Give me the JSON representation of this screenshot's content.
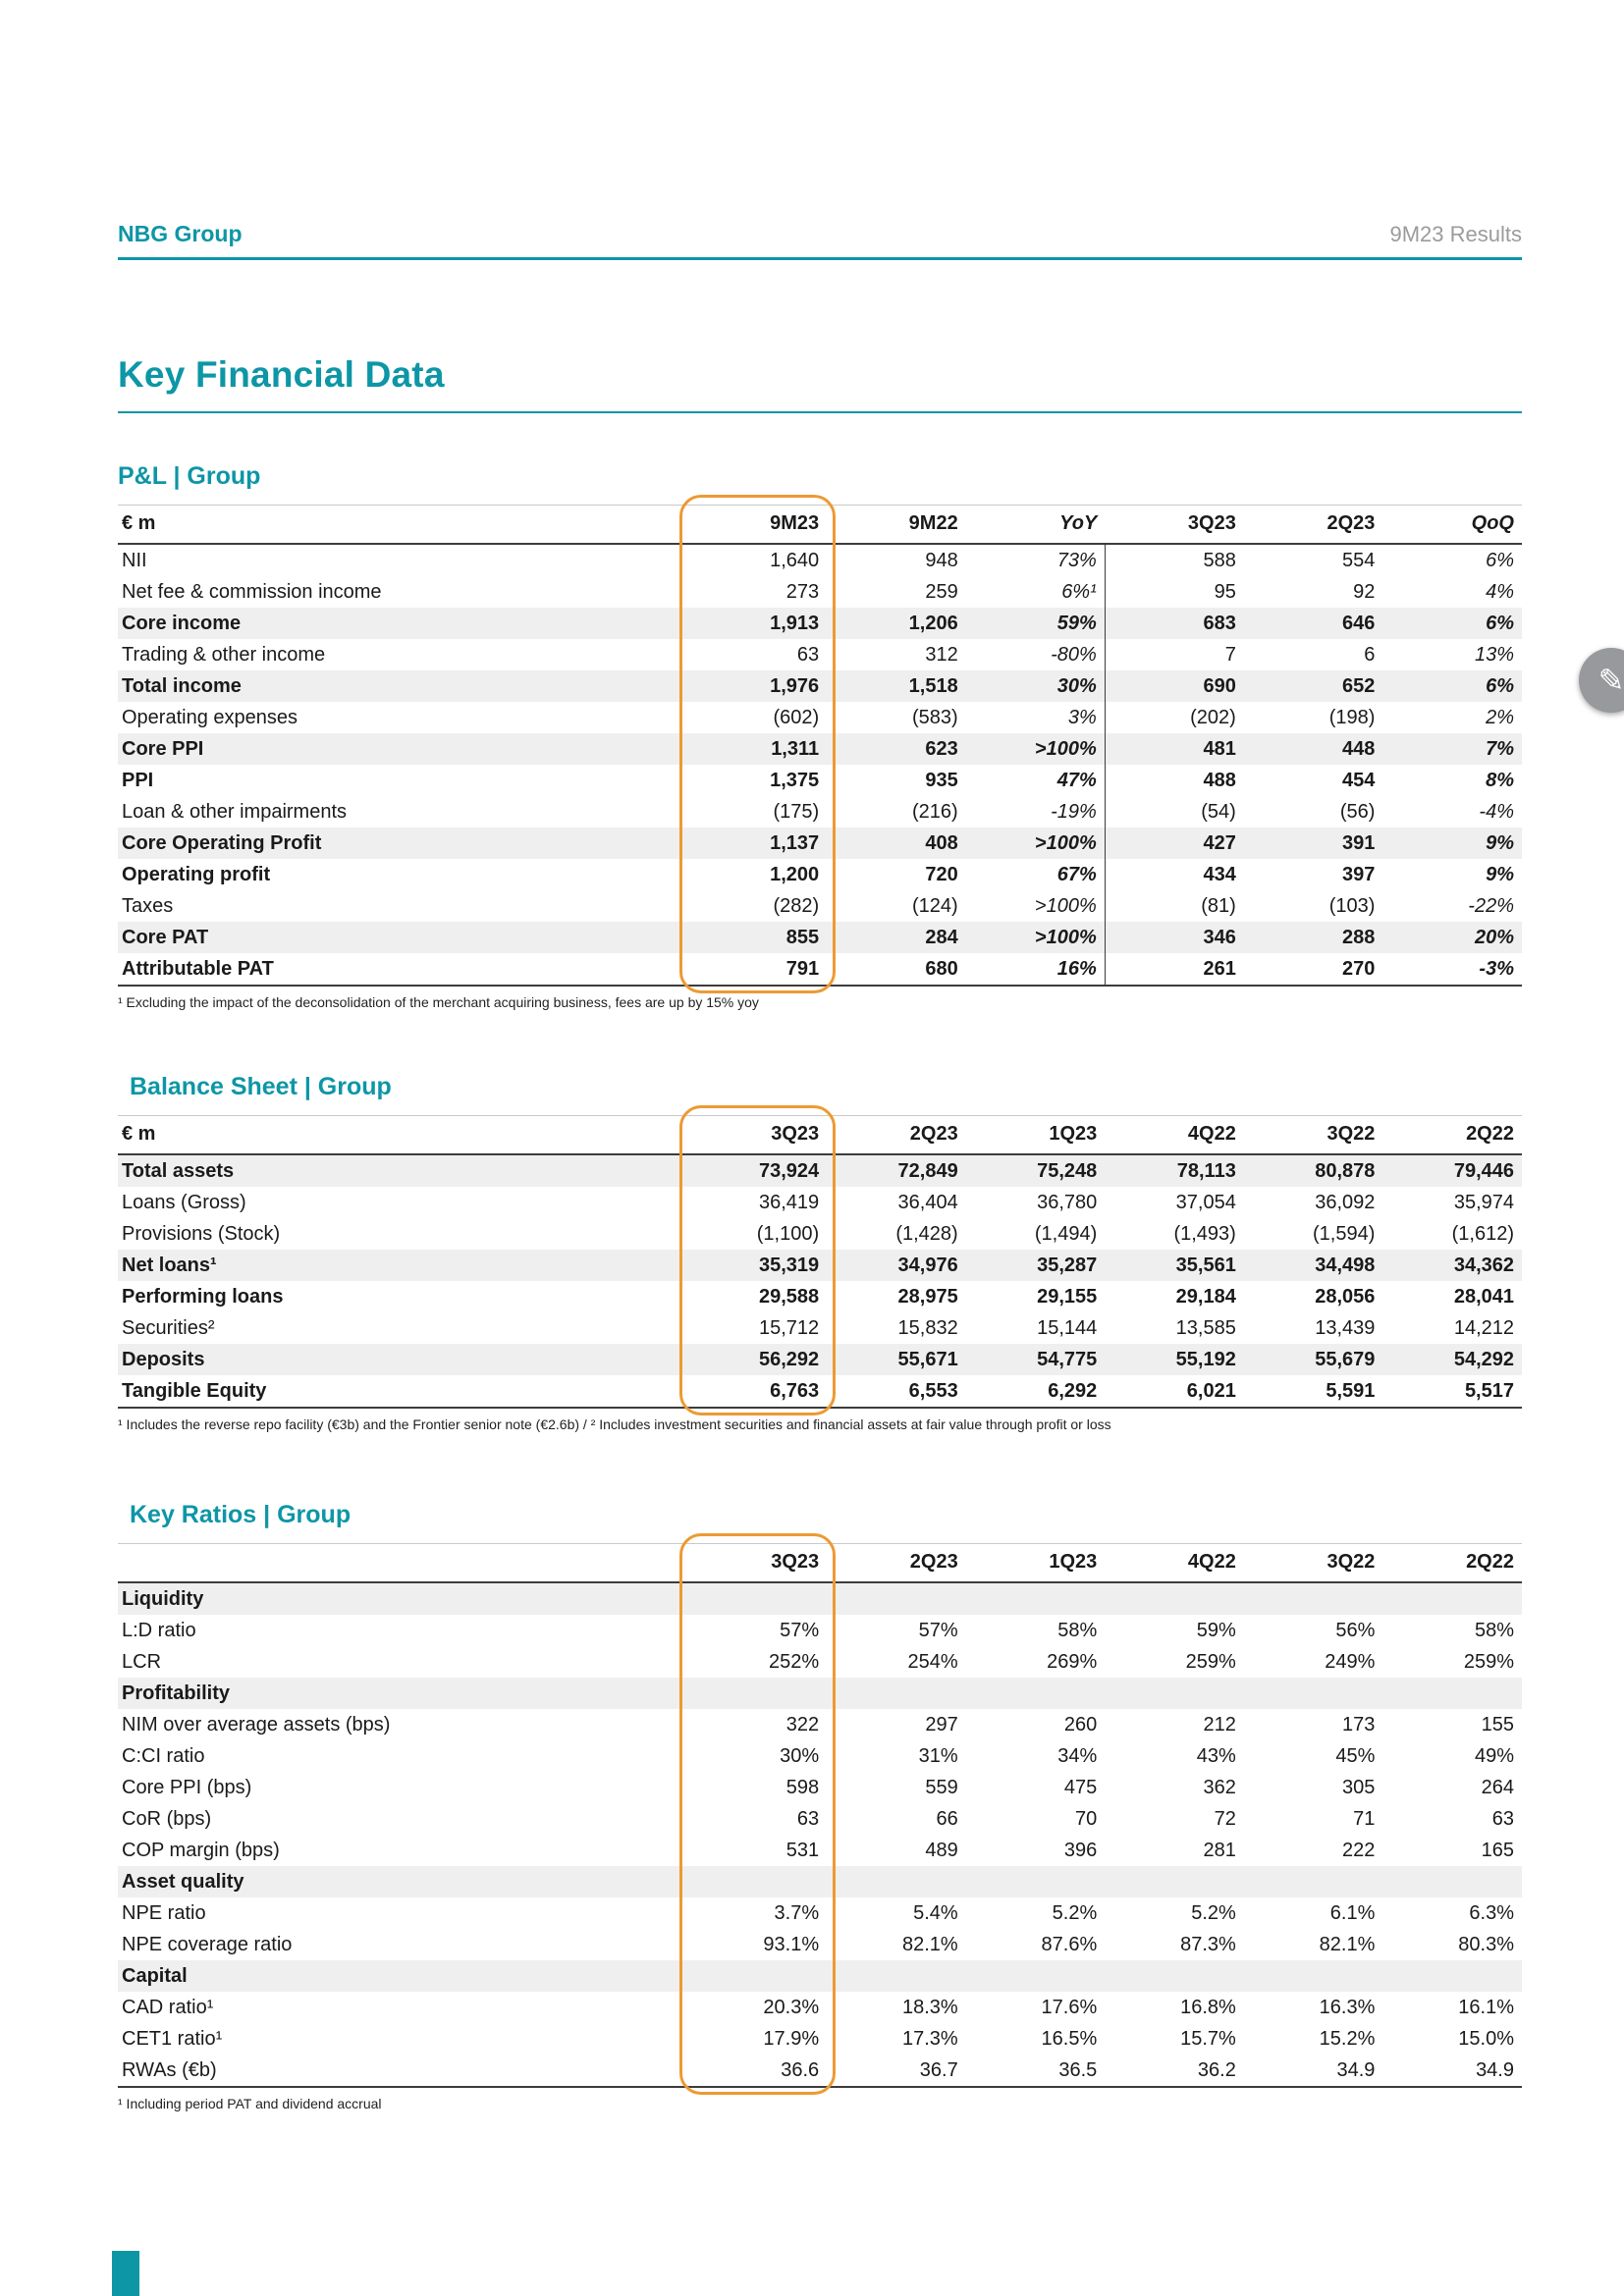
{
  "page": {
    "header_left": "NBG Group",
    "header_right": "9M23 Results",
    "title": "Key Financial Data"
  },
  "colors": {
    "teal": "#0d96a6",
    "orange": "#ec9a33",
    "shade": "#efefef",
    "gray_text": "#9b9b9b"
  },
  "edit_button": {
    "icon": "pencil",
    "glyph": "✎"
  },
  "tables": [
    {
      "id": "pnl",
      "title": "P&L | Group",
      "corner_label": "€ m",
      "columns": [
        "9M23",
        "9M22",
        "YoY",
        "3Q23",
        "2Q23",
        "QoQ"
      ],
      "italic_columns": [
        2,
        5
      ],
      "divider_before_column": 3,
      "rows": [
        {
          "label": "NII",
          "bold": false,
          "shaded": false,
          "values": [
            "1,640",
            "948",
            "73%",
            "588",
            "554",
            "6%"
          ]
        },
        {
          "label": "Net fee & commission income",
          "bold": false,
          "shaded": false,
          "values": [
            "273",
            "259",
            "6%¹",
            "95",
            "92",
            "4%"
          ]
        },
        {
          "label": "Core income",
          "bold": true,
          "shaded": true,
          "values": [
            "1,913",
            "1,206",
            "59%",
            "683",
            "646",
            "6%"
          ]
        },
        {
          "label": "Trading & other income",
          "bold": false,
          "shaded": false,
          "values": [
            "63",
            "312",
            "-80%",
            "7",
            "6",
            "13%"
          ]
        },
        {
          "label": "Total income",
          "bold": true,
          "shaded": true,
          "values": [
            "1,976",
            "1,518",
            "30%",
            "690",
            "652",
            "6%"
          ]
        },
        {
          "label": "Operating expenses",
          "bold": false,
          "shaded": false,
          "values": [
            "(602)",
            "(583)",
            "3%",
            "(202)",
            "(198)",
            "2%"
          ]
        },
        {
          "label": "Core PPI",
          "bold": true,
          "shaded": true,
          "values": [
            "1,311",
            "623",
            ">100%",
            "481",
            "448",
            "7%"
          ]
        },
        {
          "label": "PPI",
          "bold": true,
          "shaded": false,
          "values": [
            "1,375",
            "935",
            "47%",
            "488",
            "454",
            "8%"
          ]
        },
        {
          "label": "Loan & other impairments",
          "bold": false,
          "shaded": false,
          "values": [
            "(175)",
            "(216)",
            "-19%",
            "(54)",
            "(56)",
            "-4%"
          ]
        },
        {
          "label": "Core Operating Profit",
          "bold": true,
          "shaded": true,
          "values": [
            "1,137",
            "408",
            ">100%",
            "427",
            "391",
            "9%"
          ]
        },
        {
          "label": "Operating profit",
          "bold": true,
          "shaded": false,
          "values": [
            "1,200",
            "720",
            "67%",
            "434",
            "397",
            "9%"
          ]
        },
        {
          "label": "Taxes",
          "bold": false,
          "shaded": false,
          "values": [
            "(282)",
            "(124)",
            ">100%",
            "(81)",
            "(103)",
            "-22%"
          ]
        },
        {
          "label": "Core PAT",
          "bold": true,
          "shaded": true,
          "values": [
            "855",
            "284",
            ">100%",
            "346",
            "288",
            "20%"
          ]
        },
        {
          "label": "Attributable PAT",
          "bold": true,
          "shaded": false,
          "values": [
            "791",
            "680",
            "16%",
            "261",
            "270",
            "-3%"
          ]
        }
      ],
      "footnote": "¹ Excluding the impact of the deconsolidation of the merchant acquiring business, fees are up by 15% yoy"
    },
    {
      "id": "bs",
      "title": "Balance Sheet | Group",
      "corner_label": "€ m",
      "columns": [
        "3Q23",
        "2Q23",
        "1Q23",
        "4Q22",
        "3Q22",
        "2Q22"
      ],
      "italic_columns": [],
      "rows": [
        {
          "label": "Total assets",
          "bold": true,
          "shaded": true,
          "values": [
            "73,924",
            "72,849",
            "75,248",
            "78,113",
            "80,878",
            "79,446"
          ]
        },
        {
          "label": "Loans (Gross)",
          "bold": false,
          "shaded": false,
          "values": [
            "36,419",
            "36,404",
            "36,780",
            "37,054",
            "36,092",
            "35,974"
          ]
        },
        {
          "label": "Provisions (Stock)",
          "bold": false,
          "shaded": false,
          "values": [
            "(1,100)",
            "(1,428)",
            "(1,494)",
            "(1,493)",
            "(1,594)",
            "(1,612)"
          ]
        },
        {
          "label": "Net loans¹",
          "bold": true,
          "shaded": true,
          "values": [
            "35,319",
            "34,976",
            "35,287",
            "35,561",
            "34,498",
            "34,362"
          ]
        },
        {
          "label": "Performing loans",
          "bold": true,
          "shaded": false,
          "values": [
            "29,588",
            "28,975",
            "29,155",
            "29,184",
            "28,056",
            "28,041"
          ]
        },
        {
          "label": "Securities²",
          "bold": false,
          "shaded": false,
          "values": [
            "15,712",
            "15,832",
            "15,144",
            "13,585",
            "13,439",
            "14,212"
          ]
        },
        {
          "label": "Deposits",
          "bold": true,
          "shaded": true,
          "values": [
            "56,292",
            "55,671",
            "54,775",
            "55,192",
            "55,679",
            "54,292"
          ]
        },
        {
          "label": "Tangible Equity",
          "bold": true,
          "shaded": false,
          "values": [
            "6,763",
            "6,553",
            "6,292",
            "6,021",
            "5,591",
            "5,517"
          ]
        }
      ],
      "footnote": "¹ Includes the reverse repo facility (€3b) and the Frontier senior note (€2.6b) / ² Includes investment securities and financial assets at fair value through profit or loss"
    },
    {
      "id": "kr",
      "title": "Key Ratios | Group",
      "corner_label": "",
      "columns": [
        "3Q23",
        "2Q23",
        "1Q23",
        "4Q22",
        "3Q22",
        "2Q22"
      ],
      "italic_columns": [],
      "rows": [
        {
          "label": "Liquidity",
          "bold": true,
          "shaded": true,
          "section": true,
          "values": [
            "",
            "",
            "",
            "",
            "",
            ""
          ]
        },
        {
          "label": "L:D ratio",
          "bold": false,
          "shaded": false,
          "values": [
            "57%",
            "57%",
            "58%",
            "59%",
            "56%",
            "58%"
          ]
        },
        {
          "label": "LCR",
          "bold": false,
          "shaded": false,
          "values": [
            "252%",
            "254%",
            "269%",
            "259%",
            "249%",
            "259%"
          ]
        },
        {
          "label": "Profitability",
          "bold": true,
          "shaded": true,
          "section": true,
          "values": [
            "",
            "",
            "",
            "",
            "",
            ""
          ]
        },
        {
          "label": "NIM over average assets (bps)",
          "bold": false,
          "shaded": false,
          "values": [
            "322",
            "297",
            "260",
            "212",
            "173",
            "155"
          ]
        },
        {
          "label": "C:CI ratio",
          "bold": false,
          "shaded": false,
          "values": [
            "30%",
            "31%",
            "34%",
            "43%",
            "45%",
            "49%"
          ]
        },
        {
          "label": "Core PPI (bps)",
          "bold": false,
          "shaded": false,
          "values": [
            "598",
            "559",
            "475",
            "362",
            "305",
            "264"
          ]
        },
        {
          "label": "CoR (bps)",
          "bold": false,
          "shaded": false,
          "values": [
            "63",
            "66",
            "70",
            "72",
            "71",
            "63"
          ]
        },
        {
          "label": "COP margin (bps)",
          "bold": false,
          "shaded": false,
          "values": [
            "531",
            "489",
            "396",
            "281",
            "222",
            "165"
          ]
        },
        {
          "label": "Asset quality",
          "bold": true,
          "shaded": true,
          "section": true,
          "values": [
            "",
            "",
            "",
            "",
            "",
            ""
          ]
        },
        {
          "label": "NPE ratio",
          "bold": false,
          "shaded": false,
          "values": [
            "3.7%",
            "5.4%",
            "5.2%",
            "5.2%",
            "6.1%",
            "6.3%"
          ]
        },
        {
          "label": "NPE coverage ratio",
          "bold": false,
          "shaded": false,
          "values": [
            "93.1%",
            "82.1%",
            "87.6%",
            "87.3%",
            "82.1%",
            "80.3%"
          ]
        },
        {
          "label": "Capital",
          "bold": true,
          "shaded": true,
          "section": true,
          "values": [
            "",
            "",
            "",
            "",
            "",
            ""
          ]
        },
        {
          "label": "CAD ratio¹",
          "bold": false,
          "shaded": false,
          "values": [
            "20.3%",
            "18.3%",
            "17.6%",
            "16.8%",
            "16.3%",
            "16.1%"
          ]
        },
        {
          "label": "CET1 ratio¹",
          "bold": false,
          "shaded": false,
          "values": [
            "17.9%",
            "17.3%",
            "16.5%",
            "15.7%",
            "15.2%",
            "15.0%"
          ]
        },
        {
          "label": "RWAs (€b)",
          "bold": false,
          "shaded": false,
          "values": [
            "36.6",
            "36.7",
            "36.5",
            "36.2",
            "34.9",
            "34.9"
          ]
        }
      ],
      "footnote": "¹ Including period PAT and dividend accrual"
    }
  ]
}
